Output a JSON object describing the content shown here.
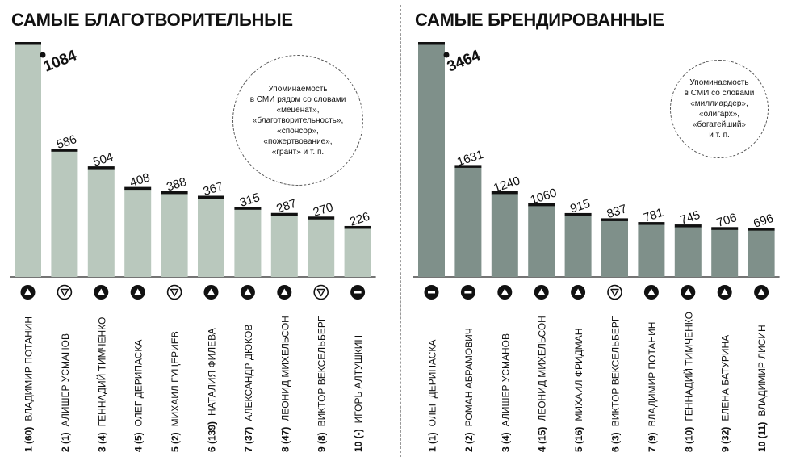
{
  "charts": [
    {
      "title": "САМЫЕ БЛАГОТВОРИТЕЛЬНЫЕ",
      "note": "Упоминаемость\nв СМИ рядом со словами\n«меценат»,\n«благотворительность»,\n«спонсор»,\n«пожертвование»,\n«грант» и т. п.",
      "bar_color": "#b9c8bd",
      "chart_data": {
        "type": "bar",
        "values": [
          1084,
          586,
          504,
          408,
          388,
          367,
          315,
          287,
          270,
          226
        ],
        "categories": [
          "ВЛАДИМИР ПОТАНИН",
          "АЛИШЕР УСМАНОВ",
          "ГЕННАДИЙ ТИМЧЕНКО",
          "ОЛЕГ ДЕРИПАСКА",
          "МИХАИЛ ГУЦЕРИЕВ",
          "НАТАЛИЯ ФИЛЕВА",
          "АЛЕКСАНДР ДЮКОВ",
          "ЛЕОНИД МИХЕЛЬСОН",
          "ВИКТОР ВЕКСЕЛЬБЕРГ",
          "ИГОРЬ АЛТУШКИН"
        ],
        "ranks": [
          "1 (60)",
          "2 (1)",
          "3 (4)",
          "4 (5)",
          "5 (2)",
          "6 (139)",
          "7 (37)",
          "8 (47)",
          "9 (8)",
          "10 (-)"
        ],
        "trends": [
          "up",
          "down",
          "up",
          "up",
          "down",
          "up",
          "up",
          "up",
          "down",
          "same"
        ]
      }
    },
    {
      "title": "САМЫЕ БРЕНДИРОВАННЫЕ",
      "note": "Упоминаемость\nв СМИ со словами\n«миллиардер»,\n«олигарх»,\n«богатейший»\nи т. п.",
      "bar_color": "#7f908a",
      "chart_data": {
        "type": "bar",
        "values": [
          3464,
          1631,
          1240,
          1060,
          915,
          837,
          781,
          745,
          706,
          696
        ],
        "categories": [
          "ОЛЕГ ДЕРИПАСКА",
          "РОМАН АБРАМОВИЧ",
          "АЛИШЕР УСМАНОВ",
          "ЛЕОНИД МИХЕЛЬСОН",
          "МИХАИЛ ФРИДМАН",
          "ВИКТОР ВЕКСЕЛЬБЕРГ",
          "ВЛАДИМИР ПОТАНИН",
          "ГЕННАДИЙ ТИМЧЕНКО",
          "ЕЛЕНА БАТУРИНА",
          "ВЛАДИМИР ЛИСИН"
        ],
        "ranks": [
          "1 (1)",
          "2 (2)",
          "3 (4)",
          "4 (15)",
          "5 (16)",
          "6 (3)",
          "7 (9)",
          "8 (10)",
          "9 (32)",
          "10 (11)"
        ],
        "trends": [
          "same",
          "same",
          "up",
          "up",
          "up",
          "down",
          "up",
          "up",
          "up",
          "up"
        ]
      }
    }
  ]
}
